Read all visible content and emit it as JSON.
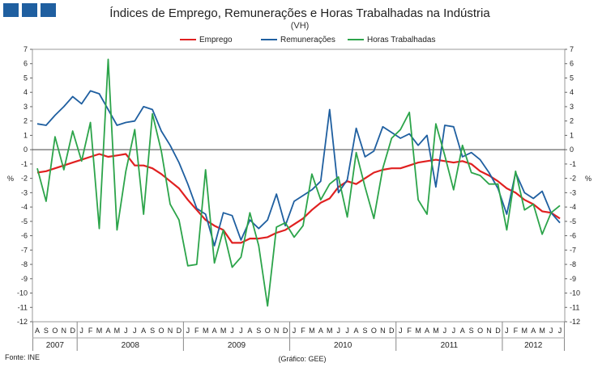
{
  "header": {
    "title": "Índices de Emprego, Remunerações e Horas Trabalhadas na Indústria",
    "subtitle": "(VH)"
  },
  "footer": {
    "source": "Fonte: INE",
    "credit": "(Gráfico: GEE)"
  },
  "chart_data": {
    "type": "line",
    "title": "Índices de Emprego, Remunerações e Horas Trabalhadas na Indústria",
    "subtitle": "(VH)",
    "ylabel": "%",
    "ylabel_right": "%",
    "ylim": [
      -12,
      7
    ],
    "yticks": [
      7,
      6,
      5,
      4,
      3,
      2,
      1,
      0,
      -1,
      -2,
      -3,
      -4,
      -5,
      -6,
      -7,
      -8,
      -9,
      -10,
      -11,
      -12
    ],
    "grid": false,
    "legend_position": "top-center",
    "x": [
      "A",
      "S",
      "O",
      "N",
      "D",
      "J",
      "F",
      "M",
      "A",
      "M",
      "J",
      "J",
      "A",
      "S",
      "O",
      "N",
      "D",
      "J",
      "F",
      "M",
      "A",
      "M",
      "J",
      "J",
      "A",
      "S",
      "O",
      "N",
      "D",
      "J",
      "F",
      "M",
      "A",
      "M",
      "J",
      "J",
      "A",
      "S",
      "O",
      "N",
      "D",
      "J",
      "F",
      "M",
      "A",
      "M",
      "J",
      "J",
      "A",
      "S",
      "O",
      "N",
      "D",
      "J",
      "F",
      "M",
      "A",
      "M",
      "J",
      "J"
    ],
    "years": [
      {
        "label": "2007",
        "months": 5
      },
      {
        "label": "2008",
        "months": 12
      },
      {
        "label": "2009",
        "months": 12
      },
      {
        "label": "2010",
        "months": 12
      },
      {
        "label": "2011",
        "months": 12
      },
      {
        "label": "2012",
        "months": 7
      }
    ],
    "series": [
      {
        "name": "Emprego",
        "color": "#e02020",
        "values": [
          -1.6,
          -1.5,
          -1.3,
          -1.1,
          -0.9,
          -0.7,
          -0.5,
          -0.3,
          -0.5,
          -0.4,
          -0.3,
          -1.1,
          -1.1,
          -1.3,
          -1.7,
          -2.2,
          -2.7,
          -3.5,
          -4.2,
          -4.9,
          -5.3,
          -5.6,
          -6.5,
          -6.5,
          -6.2,
          -6.2,
          -6.1,
          -5.8,
          -5.6,
          -5.2,
          -4.8,
          -4.2,
          -3.7,
          -3.4,
          -2.6,
          -2.2,
          -2.4,
          -2.0,
          -1.6,
          -1.4,
          -1.3,
          -1.3,
          -1.1,
          -0.9,
          -0.8,
          -0.7,
          -0.8,
          -0.9,
          -0.8,
          -1.0,
          -1.5,
          -1.8,
          -2.2,
          -2.7,
          -3.0,
          -3.5,
          -3.8,
          -4.3,
          -4.4,
          -4.8
        ]
      },
      {
        "name": "Remunerações",
        "color": "#1f5fa0",
        "values": [
          1.8,
          1.7,
          2.4,
          3.0,
          3.7,
          3.2,
          4.1,
          3.9,
          2.8,
          1.7,
          1.9,
          2.0,
          3.0,
          2.8,
          1.3,
          0.3,
          -0.9,
          -2.4,
          -4.1,
          -4.5,
          -6.7,
          -4.4,
          -4.6,
          -6.3,
          -4.9,
          -5.5,
          -4.9,
          -3.1,
          -5.3,
          -3.6,
          -3.2,
          -2.8,
          -2.2,
          2.8,
          -3.0,
          -2.1,
          1.5,
          -0.5,
          -0.1,
          1.6,
          1.2,
          0.8,
          1.1,
          0.3,
          1.0,
          -2.6,
          1.7,
          1.6,
          -0.5,
          -0.2,
          -0.7,
          -1.6,
          -2.7,
          -4.5,
          -1.6,
          -3.0,
          -3.4,
          -2.9,
          -4.4,
          -5.1
        ]
      },
      {
        "name": "Horas Trabalhadas",
        "color": "#2ca44a",
        "values": [
          -1.3,
          -3.6,
          0.9,
          -1.4,
          1.3,
          -0.8,
          1.9,
          -5.5,
          6.3,
          -5.6,
          -1.5,
          1.4,
          -4.5,
          2.5,
          -0.1,
          -3.8,
          -4.9,
          -8.1,
          -8.0,
          -1.4,
          -7.9,
          -5.6,
          -8.2,
          -7.5,
          -4.4,
          -6.7,
          -10.9,
          -5.4,
          -5.1,
          -6.1,
          -5.3,
          -1.7,
          -3.5,
          -2.4,
          -1.9,
          -4.7,
          -0.2,
          -2.6,
          -4.8,
          -1.3,
          0.8,
          1.4,
          2.6,
          -3.5,
          -4.5,
          1.8,
          -0.4,
          -2.8,
          0.3,
          -1.6,
          -1.8,
          -2.4,
          -2.4,
          -5.6,
          -1.5,
          -4.2,
          -3.8,
          -5.9,
          -4.4,
          -3.9
        ]
      }
    ]
  }
}
